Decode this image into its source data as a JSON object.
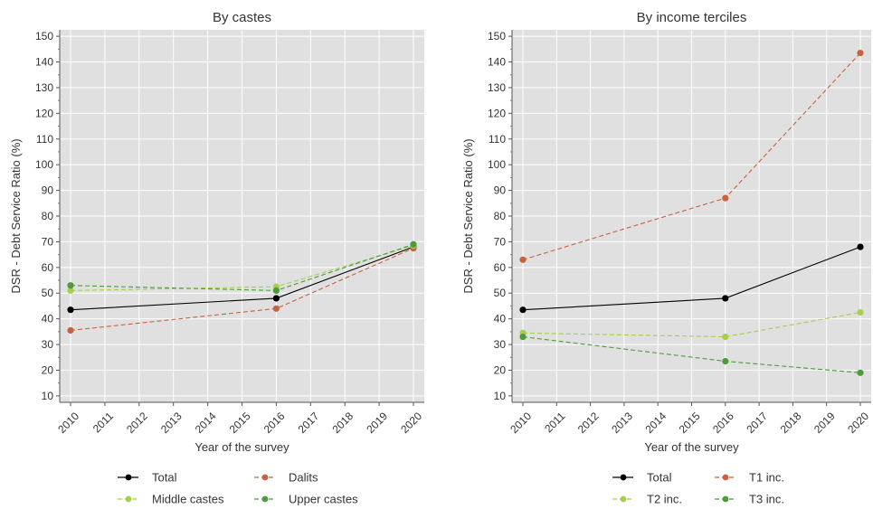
{
  "ylabel": "DSR - Debt Service Ratio (%)",
  "xlabel": "Year of the survey",
  "colors": {
    "panel_bg": "#e0e0e0",
    "grid": "#ffffff",
    "total": "#000000",
    "orange": "#c8623e",
    "lightgreen": "#a6cf4b",
    "darkgreen": "#4e9a3e"
  },
  "chart_data": [
    {
      "type": "line",
      "title": "By castes",
      "xlabel": "Year of the survey",
      "ylabel": "DSR - Debt Service Ratio (%)",
      "x_ticks": [
        "2010",
        "2011",
        "2012",
        "2013",
        "2014",
        "2015",
        "2016",
        "2017",
        "2018",
        "2019",
        "2020"
      ],
      "y_ticks": [
        10,
        20,
        30,
        40,
        50,
        60,
        70,
        80,
        90,
        100,
        110,
        120,
        130,
        140,
        150
      ],
      "xlim": [
        2010,
        2020
      ],
      "ylim": [
        10,
        150
      ],
      "grid": true,
      "legend_position": "bottom",
      "series": [
        {
          "name": "Total",
          "x": [
            2010,
            2016,
            2020
          ],
          "y": [
            43.5,
            48.0,
            68.0
          ],
          "color": "#000000",
          "dash": "solid"
        },
        {
          "name": "Dalits",
          "x": [
            2010,
            2016,
            2020
          ],
          "y": [
            35.5,
            44.0,
            67.5
          ],
          "color": "#c8623e",
          "dash": "dashed"
        },
        {
          "name": "Middle castes",
          "x": [
            2010,
            2016,
            2020
          ],
          "y": [
            51.0,
            52.5,
            68.5
          ],
          "color": "#a6cf4b",
          "dash": "dashed"
        },
        {
          "name": "Upper castes",
          "x": [
            2010,
            2016,
            2020
          ],
          "y": [
            53.0,
            51.0,
            69.0
          ],
          "color": "#4e9a3e",
          "dash": "dashed"
        }
      ]
    },
    {
      "type": "line",
      "title": "By income terciles",
      "xlabel": "Year of the survey",
      "ylabel": "DSR - Debt Service Ratio (%)",
      "x_ticks": [
        "2010",
        "2011",
        "2012",
        "2013",
        "2014",
        "2015",
        "2016",
        "2017",
        "2018",
        "2019",
        "2020"
      ],
      "y_ticks": [
        10,
        20,
        30,
        40,
        50,
        60,
        70,
        80,
        90,
        100,
        110,
        120,
        130,
        140,
        150
      ],
      "xlim": [
        2010,
        2020
      ],
      "ylim": [
        10,
        150
      ],
      "grid": true,
      "legend_position": "bottom",
      "series": [
        {
          "name": "Total",
          "x": [
            2010,
            2016,
            2020
          ],
          "y": [
            43.5,
            48.0,
            68.0
          ],
          "color": "#000000",
          "dash": "solid"
        },
        {
          "name": "T1 inc.",
          "x": [
            2010,
            2016,
            2020
          ],
          "y": [
            63.0,
            87.0,
            143.5
          ],
          "color": "#c8623e",
          "dash": "dashed"
        },
        {
          "name": "T2 inc.",
          "x": [
            2010,
            2016,
            2020
          ],
          "y": [
            34.5,
            33.0,
            42.5
          ],
          "color": "#a6cf4b",
          "dash": "dashed"
        },
        {
          "name": "T3 inc.",
          "x": [
            2010,
            2016,
            2020
          ],
          "y": [
            33.0,
            23.5,
            19.0
          ],
          "color": "#4e9a3e",
          "dash": "dashed"
        }
      ]
    }
  ]
}
